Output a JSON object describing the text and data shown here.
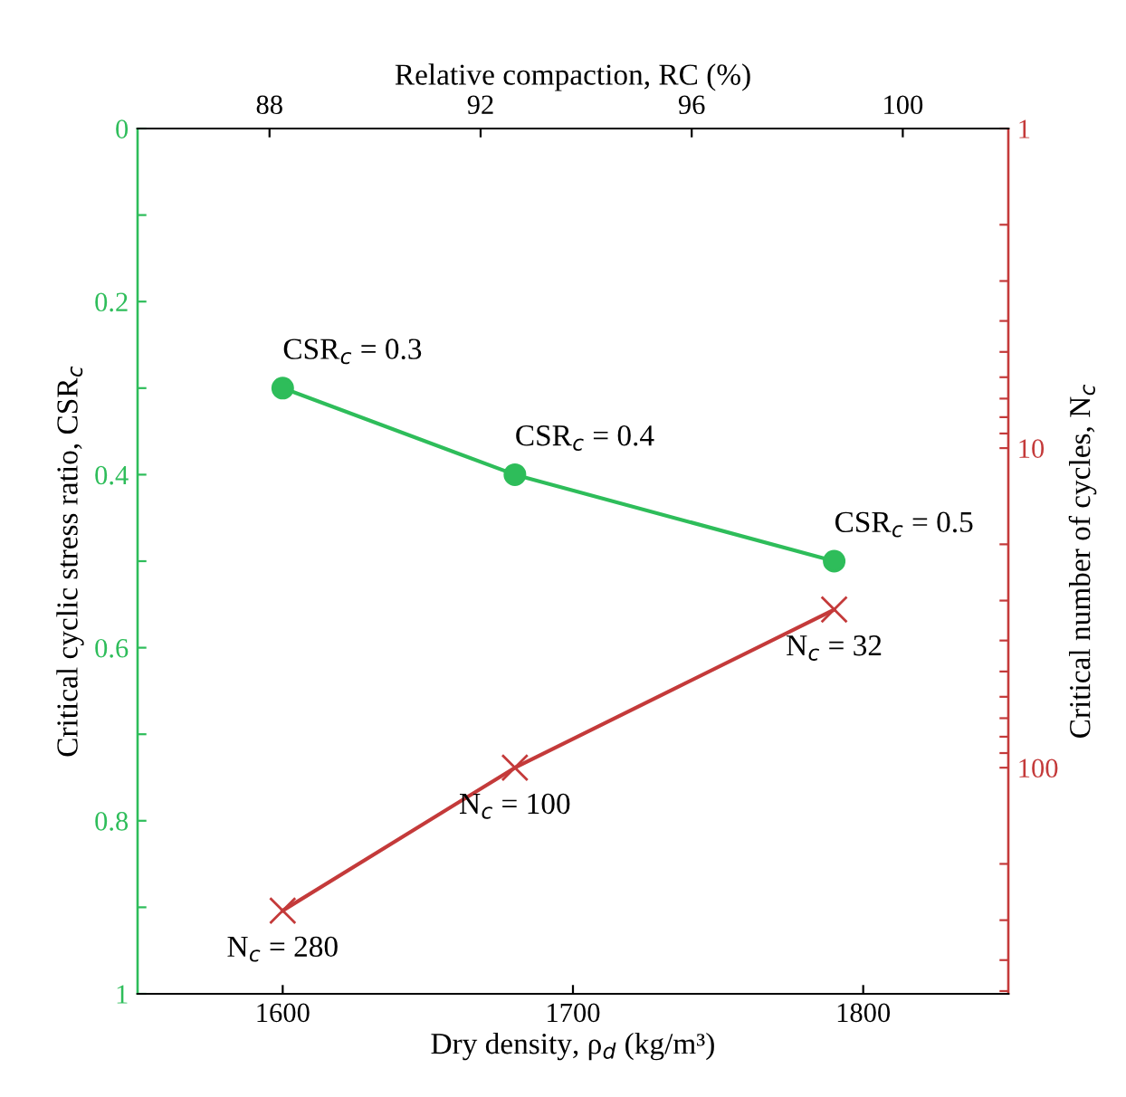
{
  "chart_data": {
    "type": "line",
    "xlabel": "Dry density, ρ$_{d}$ (kg/m³)",
    "ylabel": "Critical cyclic stress ratio, CSR$_{c}$",
    "y2label": "Critical number of cycles, N$_{c}$",
    "x2label": "Relative compaction, RC (%)",
    "xlim": [
      1550,
      1850
    ],
    "xticks": [
      1600,
      1700,
      1800
    ],
    "x2lim": [
      85.5,
      102
    ],
    "x2ticks": [
      88,
      92,
      96,
      100
    ],
    "ylim": [
      1,
      0
    ],
    "yticks": [
      0,
      {
        "value": 0.1,
        "label": null
      },
      0.2,
      {
        "value": 0.3,
        "label": null
      },
      0.4,
      {
        "value": 0.5,
        "label": null
      },
      0.6,
      {
        "value": 0.7,
        "label": null
      },
      0.8,
      {
        "value": 0.9,
        "label": null
      },
      1
    ],
    "log": "y2",
    "y2lim": [
      510,
      1
    ],
    "y2ticks": [
      1,
      {
        "value": 2,
        "label": null
      },
      {
        "value": 3,
        "label": null
      },
      {
        "value": 4,
        "label": null
      },
      {
        "value": 5,
        "label": null
      },
      {
        "value": 6,
        "label": null
      },
      {
        "value": 7,
        "label": null
      },
      {
        "value": 8,
        "label": null
      },
      {
        "value": 9,
        "label": null
      },
      10,
      {
        "value": 20,
        "label": null
      },
      {
        "value": 30,
        "label": null
      },
      {
        "value": 40,
        "label": null
      },
      {
        "value": 50,
        "label": null
      },
      {
        "value": 60,
        "label": null
      },
      {
        "value": 70,
        "label": null
      },
      {
        "value": 80,
        "label": null
      },
      {
        "value": 90,
        "label": null
      },
      100,
      {
        "value": 200,
        "label": null
      },
      {
        "value": 300,
        "label": null
      },
      {
        "value": 400,
        "label": null
      },
      {
        "value": 500,
        "label": null
      }
    ],
    "grid": false,
    "legend": false,
    "series": [
      {
        "axis": "y",
        "color": "#2ebd5a",
        "marker": "circle",
        "line_style": "solid",
        "x": [
          1600,
          1680,
          1790
        ],
        "values": [
          0.3,
          0.4,
          0.5
        ]
      },
      {
        "axis": "y2",
        "color": "#c43a3a",
        "marker": "cross",
        "line_style": "solid",
        "x": [
          1600,
          1680,
          1790
        ],
        "values": [
          280,
          100,
          32
        ]
      }
    ],
    "annotations": [
      {
        "text": "CSR$_{c}$ = 0.3",
        "x": 1600,
        "y": 0.3
      },
      {
        "text": "CSR$_{c}$ = 0.4",
        "x": 1680,
        "y": 0.4
      },
      {
        "text": "CSR$_{c}$ = 0.5",
        "x": 1790,
        "y": 0.5
      },
      "N$_{c}$ = 280",
      "N$_{c}$ = 100",
      "N$_{c}$ = 32"
    ]
  }
}
